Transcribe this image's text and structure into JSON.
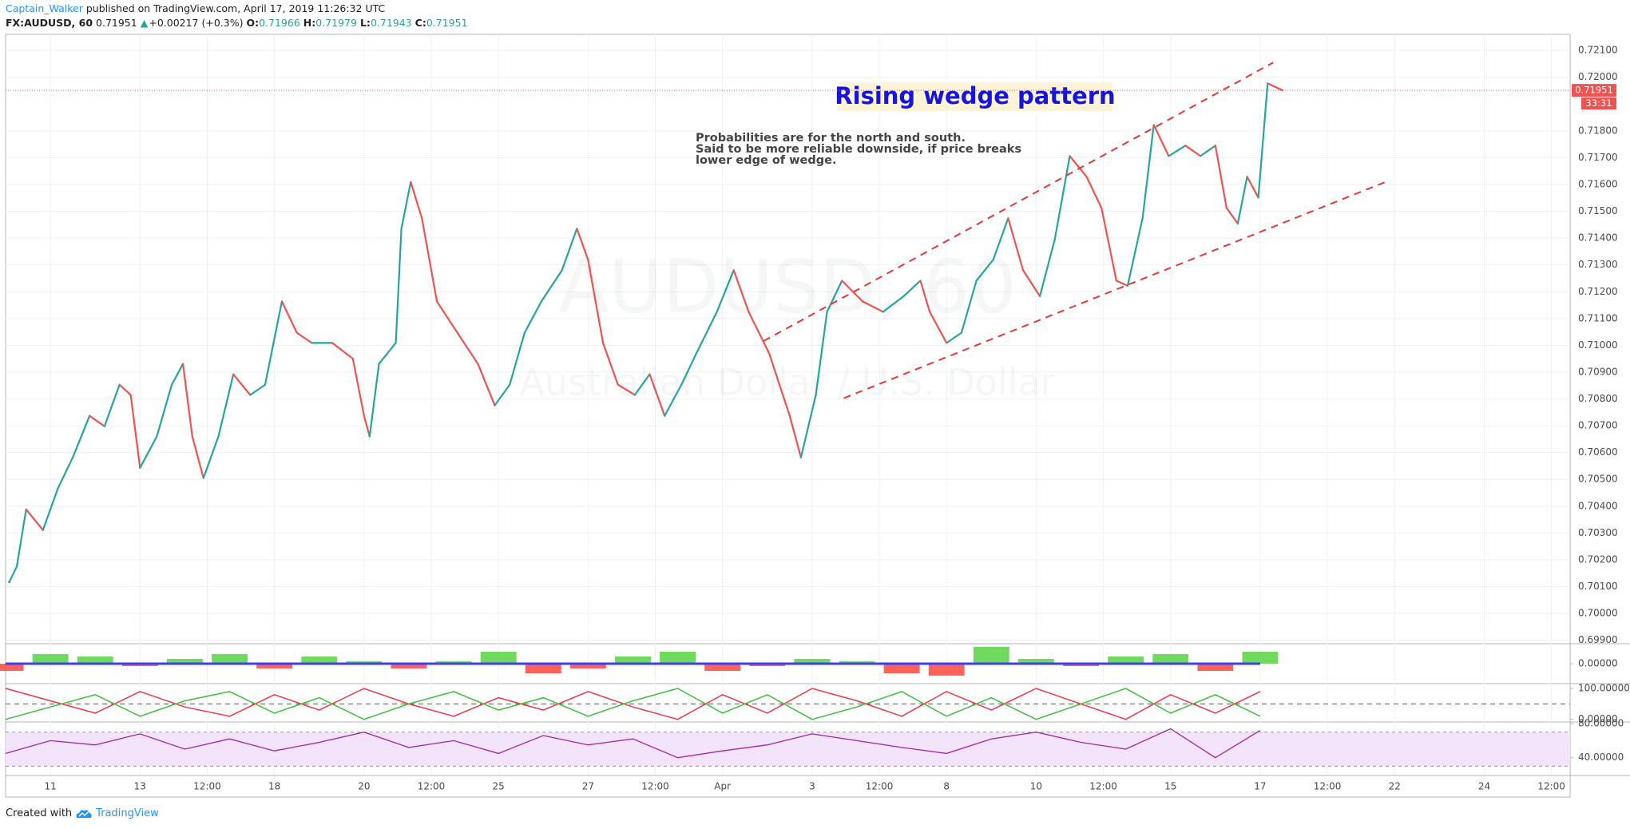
{
  "header": {
    "author": "Captain_Walker",
    "published": "published on TradingView.com, April 17, 2019 11:26:32 UTC",
    "symbol": "FX:AUDUSD, 60",
    "last": "0.71951",
    "arrow": "▲",
    "change": "+0.00217 (+0.3%)",
    "ohlc": [
      {
        "label": "O:",
        "value": "0.71966"
      },
      {
        "label": "H:",
        "value": "0.71979"
      },
      {
        "label": "L:",
        "value": "0.71943"
      },
      {
        "label": "C:",
        "value": "0.71951"
      }
    ]
  },
  "footer": {
    "text": "Created with",
    "brand": "TradingView"
  },
  "chart_data": [
    {
      "type": "line",
      "watermark": [
        "AUDUSD, 60",
        "Australian Dollar / U.S. Dollar"
      ],
      "annotations": {
        "title": "Rising wedge pattern",
        "lines": [
          "Probabilities are for the north and south.",
          "Said to be more reliable downside, if price breaks",
          "lower edge of wedge."
        ]
      },
      "x": [
        -22,
        -18,
        -13,
        -4,
        4,
        12,
        21,
        29,
        37,
        43,
        48,
        57,
        65,
        71,
        76,
        82,
        90,
        98,
        107,
        115,
        124,
        132,
        140,
        151,
        162,
        168,
        171,
        176,
        185,
        188,
        193,
        199,
        207,
        218,
        229,
        238,
        246,
        254,
        263,
        274,
        282,
        288,
        296,
        304,
        313,
        321,
        329,
        338,
        346,
        357,
        366,
        374,
        385,
        396,
        402,
        410,
        416,
        424,
        435,
        446,
        457,
        466,
        471,
        480,
        488,
        496,
        505,
        513,
        521,
        530,
        538,
        546,
        555,
        563,
        571,
        577,
        585,
        591,
        599,
        608,
        616,
        624,
        630,
        636,
        641,
        647,
        652,
        660
      ],
      "values": [
        0.70117,
        0.70175,
        0.70388,
        0.70311,
        0.70466,
        0.70582,
        0.70737,
        0.70698,
        0.70853,
        0.70815,
        0.70543,
        0.7066,
        0.70853,
        0.70931,
        0.7066,
        0.70505,
        0.7066,
        0.70892,
        0.70815,
        0.70853,
        0.71164,
        0.71047,
        0.71009,
        0.71009,
        0.7095,
        0.70737,
        0.7066,
        0.70931,
        0.71009,
        0.71435,
        0.71609,
        0.71474,
        0.71164,
        0.71047,
        0.70931,
        0.70776,
        0.70853,
        0.71047,
        0.71164,
        0.7128,
        0.71435,
        0.71319,
        0.71009,
        0.70853,
        0.70815,
        0.70892,
        0.70737,
        0.70853,
        0.7097,
        0.71125,
        0.7128,
        0.71125,
        0.7097,
        0.70737,
        0.70582,
        0.70815,
        0.71125,
        0.71241,
        0.71164,
        0.71125,
        0.71183,
        0.71241,
        0.71125,
        0.71009,
        0.71047,
        0.71241,
        0.71319,
        0.71474,
        0.7128,
        0.71183,
        0.71396,
        0.71706,
        0.71629,
        0.71512,
        0.71241,
        0.71222,
        0.71474,
        0.71822,
        0.71706,
        0.71745,
        0.71706,
        0.71745,
        0.71512,
        0.71454,
        0.71629,
        0.71551,
        0.71977,
        0.71951
      ],
      "colors": {
        "up": "#26a69a",
        "down": "#ef5350"
      },
      "trendlines": [
        {
          "x": [
            382,
            655
          ],
          "values": [
            0.71016,
            0.72055
          ],
          "color": "#e53935"
        },
        {
          "x": [
            425,
            715
          ],
          "values": [
            0.70803,
            0.71609
          ],
          "color": "#e53935"
        }
      ],
      "last_price": {
        "value": 0.71951,
        "label": "0.71951",
        "countdown": "33:31",
        "color": "#ef5350"
      },
      "xlim": [
        -24,
        814
      ],
      "xticks": [
        {
          "value": 0,
          "label": "11"
        },
        {
          "value": 48,
          "label": "13"
        },
        {
          "value": 84,
          "label": "12:00"
        },
        {
          "value": 120,
          "label": "18"
        },
        {
          "value": 168,
          "label": "20"
        },
        {
          "value": 204,
          "label": "12:00"
        },
        {
          "value": 240,
          "label": "25"
        },
        {
          "value": 288,
          "label": "27"
        },
        {
          "value": 324,
          "label": "12:00"
        },
        {
          "value": 360,
          "label": "Apr"
        },
        {
          "value": 408,
          "label": "3"
        },
        {
          "value": 444,
          "label": "12:00"
        },
        {
          "value": 480,
          "label": "8"
        },
        {
          "value": 528,
          "label": "10"
        },
        {
          "value": 564,
          "label": "12:00"
        },
        {
          "value": 600,
          "label": "15"
        },
        {
          "value": 648,
          "label": "17"
        },
        {
          "value": 684,
          "label": "12:00"
        },
        {
          "value": 720,
          "label": "22"
        },
        {
          "value": 768,
          "label": "24"
        },
        {
          "value": 804,
          "label": "12:00"
        }
      ],
      "ylim": [
        0.6989,
        0.7216
      ],
      "yticks": [
        {
          "value": 0.699,
          "label": "0.69900"
        },
        {
          "value": 0.7,
          "label": "0.70000"
        },
        {
          "value": 0.701,
          "label": "0.70100"
        },
        {
          "value": 0.702,
          "label": "0.70200"
        },
        {
          "value": 0.703,
          "label": "0.70300"
        },
        {
          "value": 0.704,
          "label": "0.70400"
        },
        {
          "value": 0.705,
          "label": "0.70500"
        },
        {
          "value": 0.706,
          "label": "0.70600"
        },
        {
          "value": 0.707,
          "label": "0.70700"
        },
        {
          "value": 0.708,
          "label": "0.70800"
        },
        {
          "value": 0.709,
          "label": "0.70900"
        },
        {
          "value": 0.71,
          "label": "0.71000"
        },
        {
          "value": 0.711,
          "label": "0.71100"
        },
        {
          "value": 0.712,
          "label": "0.71200"
        },
        {
          "value": 0.713,
          "label": "0.71300"
        },
        {
          "value": 0.714,
          "label": "0.71400"
        },
        {
          "value": 0.715,
          "label": "0.71500"
        },
        {
          "value": 0.716,
          "label": "0.71600"
        },
        {
          "value": 0.717,
          "label": "0.71700"
        },
        {
          "value": 0.718,
          "label": "0.71800"
        },
        {
          "value": 0.72,
          "label": "0.72000"
        },
        {
          "value": 0.721,
          "label": "0.72100"
        }
      ],
      "grid": true
    },
    {
      "type": "bar",
      "x": [
        -24,
        0,
        24,
        48,
        72,
        96,
        120,
        144,
        168,
        192,
        216,
        240,
        264,
        288,
        312,
        336,
        360,
        384,
        408,
        432,
        456,
        480,
        504,
        528,
        552,
        576,
        600,
        624,
        648
      ],
      "values": [
        -0.0003,
        0.0004,
        0.0003,
        -0.0001,
        0.0002,
        0.0004,
        -0.0002,
        0.0003,
        0.0001,
        -0.0002,
        0.0001,
        0.0005,
        -0.0004,
        -0.0002,
        0.0003,
        0.0005,
        -0.0003,
        -0.0001,
        0.0002,
        0.0001,
        -0.0004,
        -0.0005,
        0.0007,
        0.0002,
        -0.0001,
        0.0003,
        0.0004,
        -0.0003,
        0.0005
      ],
      "colors": {
        "up": "#4cd137",
        "down": "#ff3b30"
      },
      "ylim": [
        -0.0008,
        0.0008
      ],
      "yticks": [
        {
          "value": 0,
          "label": "0.00000"
        }
      ],
      "zero_color": "#3d3dff"
    },
    {
      "type": "line",
      "x": [
        -24,
        0,
        24,
        48,
        72,
        96,
        120,
        144,
        168,
        192,
        216,
        240,
        264,
        288,
        312,
        336,
        360,
        384,
        408,
        432,
        456,
        480,
        504,
        528,
        552,
        576,
        600,
        624,
        648
      ],
      "series": [
        {
          "color": "#f23645",
          "values": [
            100,
            60,
            20,
            90,
            40,
            10,
            80,
            30,
            100,
            50,
            10,
            70,
            30,
            90,
            40,
            0,
            80,
            20,
            100,
            60,
            10,
            90,
            30,
            100,
            50,
            0,
            80,
            20,
            90
          ]
        },
        {
          "color": "#3cbf3c",
          "values": [
            0,
            40,
            80,
            10,
            60,
            90,
            20,
            70,
            0,
            50,
            90,
            30,
            70,
            10,
            60,
            100,
            20,
            80,
            0,
            40,
            90,
            10,
            70,
            0,
            50,
            100,
            20,
            80,
            10
          ]
        }
      ],
      "ylim": [
        -6,
        113
      ],
      "yticks": [
        {
          "value": 100,
          "label": "100.00000"
        },
        {
          "value": 0,
          "label": "0.00000"
        }
      ],
      "hlines": [
        50
      ]
    },
    {
      "type": "line",
      "x": [
        -24,
        0,
        24,
        48,
        72,
        96,
        120,
        144,
        168,
        192,
        216,
        240,
        264,
        288,
        312,
        336,
        360,
        384,
        408,
        432,
        456,
        480,
        504,
        528,
        552,
        576,
        600,
        624,
        648
      ],
      "values": [
        45,
        60,
        55,
        68,
        50,
        62,
        48,
        58,
        70,
        52,
        60,
        45,
        66,
        55,
        62,
        40,
        48,
        55,
        68,
        60,
        52,
        45,
        62,
        70,
        58,
        50,
        74,
        40,
        72
      ],
      "color": "#9c27b0",
      "band": [
        30,
        70
      ],
      "band_color": "#f3e3fb",
      "ylim": [
        20,
        81
      ],
      "yticks": [
        {
          "value": 80,
          "label": "80.00000"
        },
        {
          "value": 40,
          "label": "40.00000"
        }
      ]
    }
  ]
}
